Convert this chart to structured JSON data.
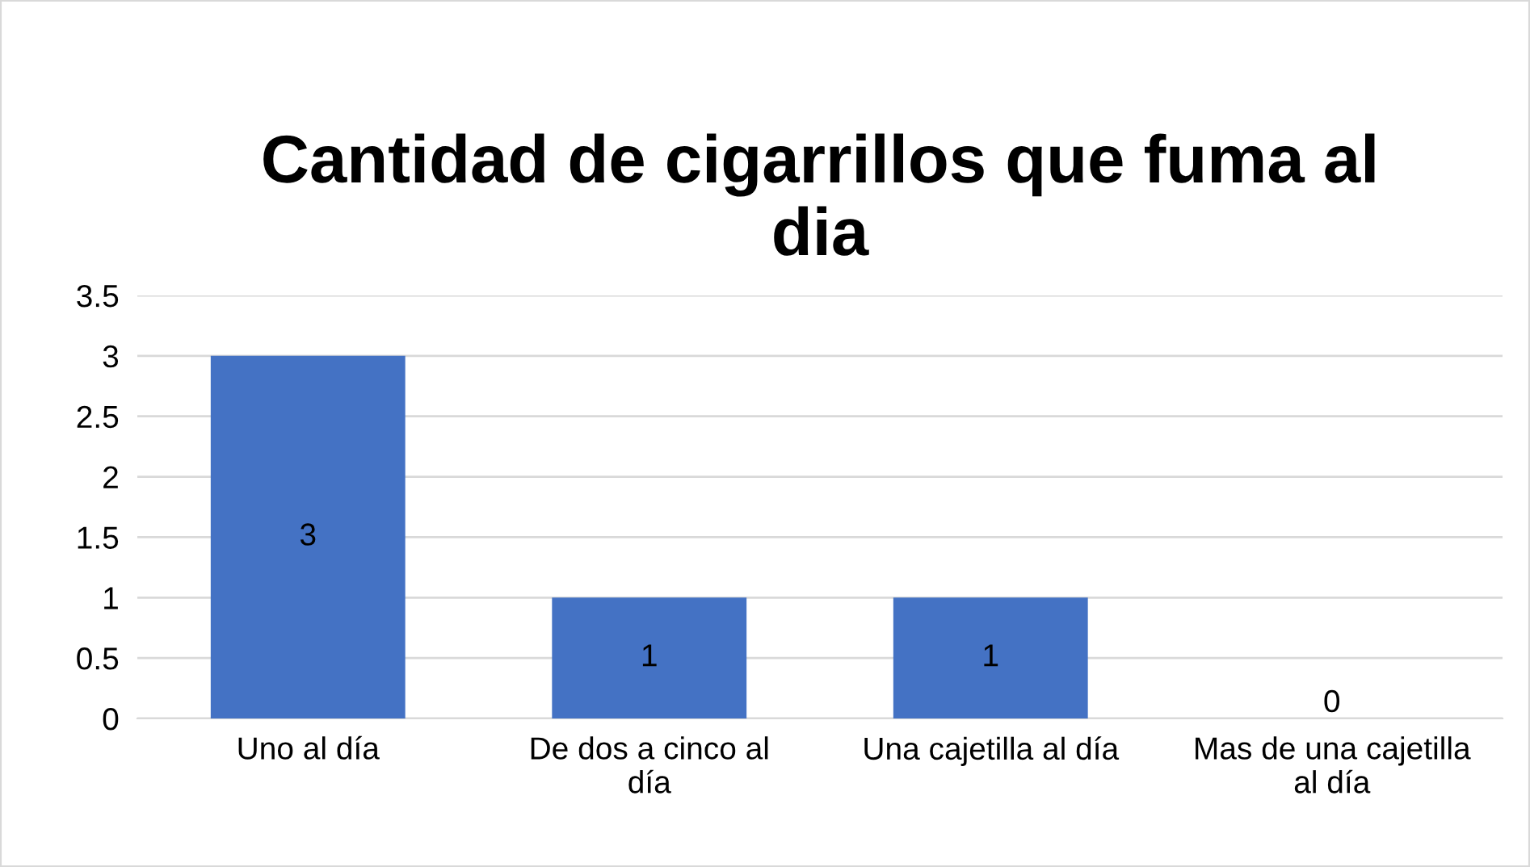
{
  "chart_data": {
    "type": "bar",
    "title": "Cantidad de cigarrillos que fuma al dia",
    "categories": [
      "Uno al día",
      "De dos a cinco al día",
      "Una cajetilla al día",
      "Mas de una cajetilla al día"
    ],
    "values": [
      3,
      1,
      1,
      0
    ],
    "color": "#4472c4",
    "ylim": [
      0,
      3.5
    ],
    "yticks": [
      0,
      0.5,
      1,
      1.5,
      2,
      2.5,
      3,
      3.5
    ],
    "grid": "y",
    "data_labels": true,
    "legend": false
  }
}
